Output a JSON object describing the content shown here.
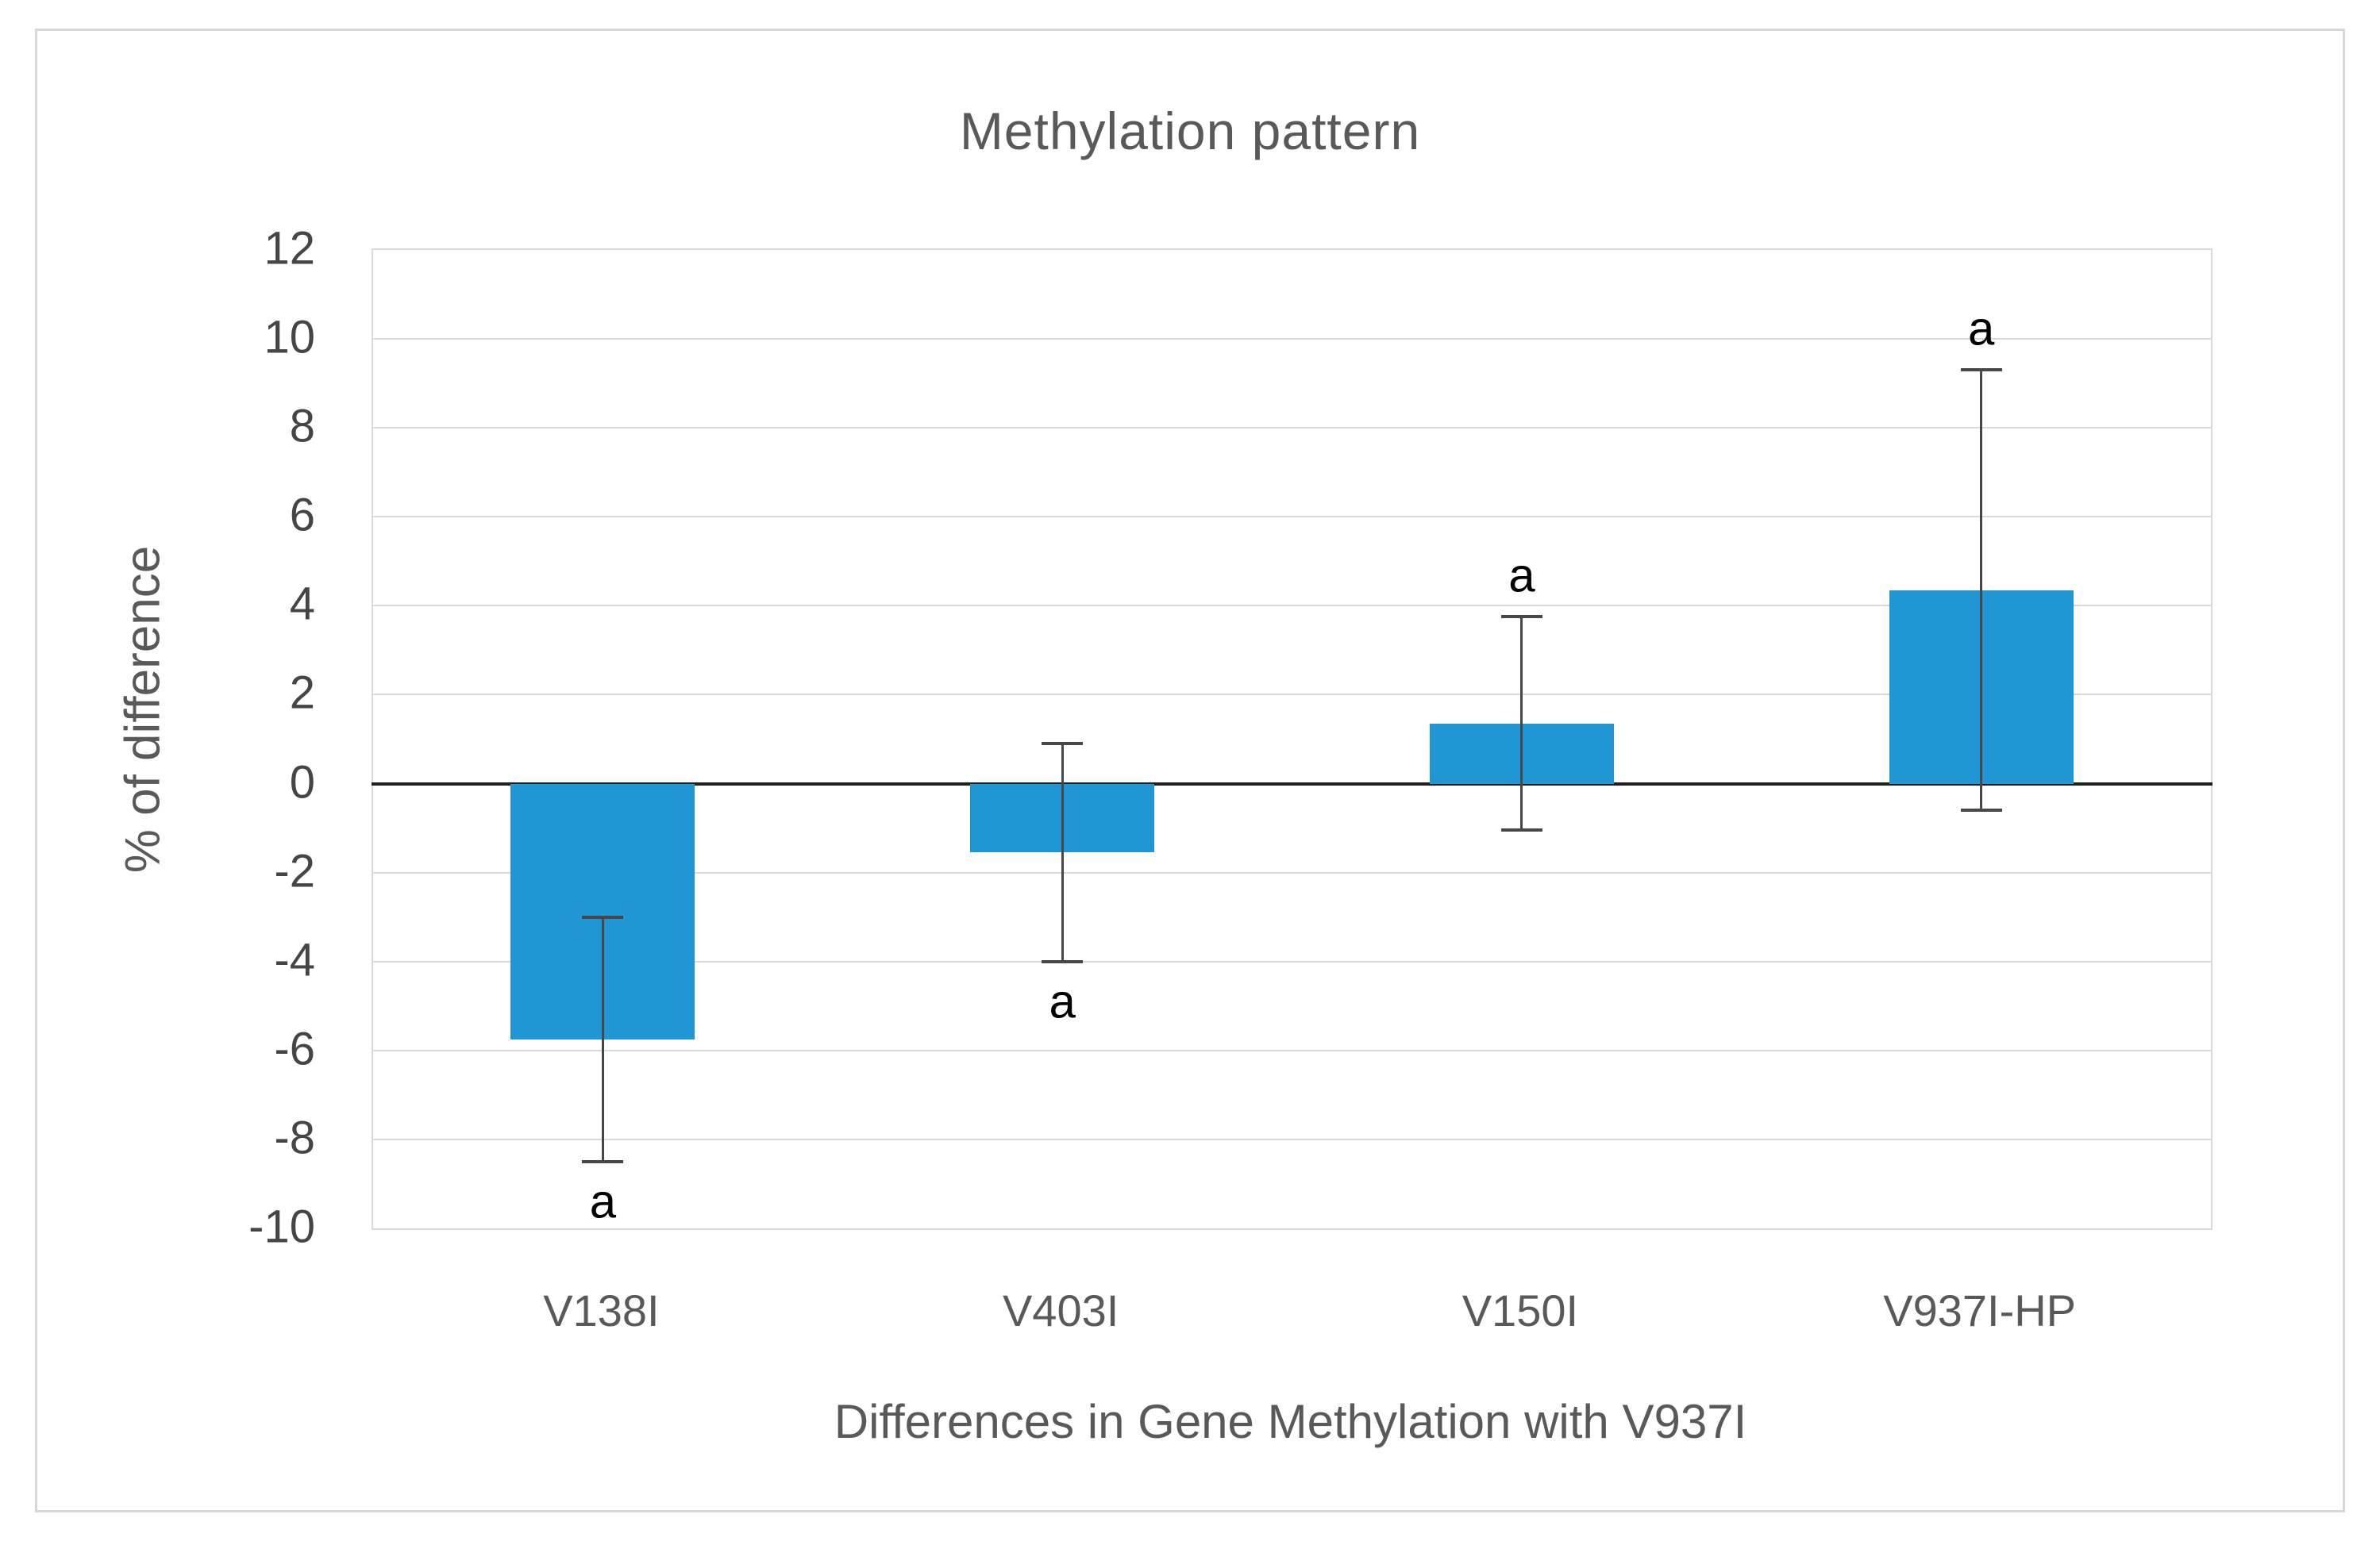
{
  "title": "Methylation pattern",
  "axes": {
    "y_title": "% of difference",
    "x_title": "Differences in Gene Methylation with V937I"
  },
  "chart_data": {
    "type": "bar",
    "title": "Methylation pattern",
    "categories": [
      "V138I",
      "V403I",
      "V150I",
      "V937I-HP"
    ],
    "values": [
      -5.75,
      -1.55,
      1.35,
      4.35
    ],
    "error_bars": [
      2.75,
      2.45,
      2.4,
      4.95
    ],
    "point_labels": [
      "a",
      "a",
      "a",
      "a"
    ],
    "xlabel": "Differences in Gene Methylation with V937I",
    "ylabel": "% of difference",
    "ylim": [
      -10,
      12
    ],
    "ytick_step": 2,
    "yticks": [
      12,
      10,
      8,
      6,
      4,
      2,
      0,
      -2,
      -4,
      -6,
      -8,
      -10
    ],
    "grid": true,
    "legend": "none",
    "colors": {
      "bar": "#2096d5",
      "gridline": "#d9d9d9",
      "zero_axis": "#1f1f1f",
      "error_bar": "#474747",
      "title_text": "#595959",
      "tick_text": "#454545",
      "frame_border": "#d7d7d7"
    }
  }
}
